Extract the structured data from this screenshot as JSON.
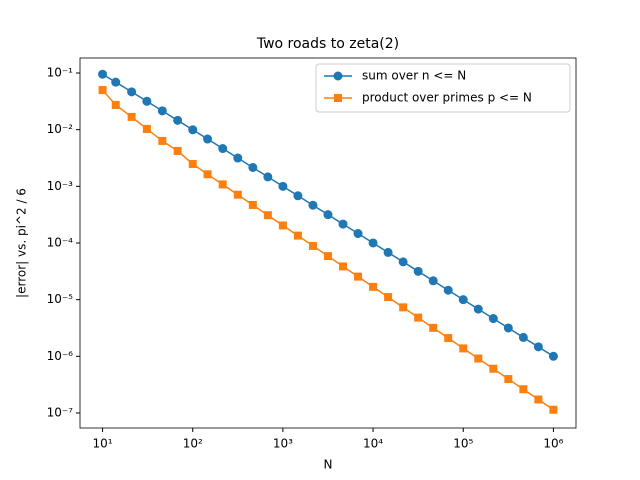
{
  "chart_data": {
    "type": "line",
    "title": "Two roads to zeta(2)",
    "xlabel": "N",
    "ylabel": "|error| vs. pi^2 / 6",
    "xscale": "log",
    "yscale": "log",
    "legend": "upper right",
    "x": [
      10,
      14,
      21,
      31,
      46,
      68,
      100,
      146,
      215,
      316,
      464,
      681,
      1000,
      1467,
      2154,
      3162,
      4641,
      6812,
      10000,
      14677,
      21544,
      31622,
      46415,
      68129,
      100000,
      146779,
      215443,
      316227,
      464158,
      681292,
      1000000
    ],
    "series": [
      {
        "name": "sum over n <= N",
        "color": "#1f77b4",
        "marker": "circle",
        "values": [
          0.0952,
          0.0689,
          0.0465,
          0.0317,
          0.0215,
          0.0146,
          0.00995,
          0.00683,
          0.00465,
          0.00316,
          0.00215,
          0.001468,
          0.0009995,
          0.0006815,
          0.0004643,
          0.0003162,
          0.0002155,
          0.0001468,
          0.0001,
          6.813e-05,
          4.642e-05,
          3.162e-05,
          2.154e-05,
          1.468e-05,
          1e-05,
          6.813e-06,
          4.642e-06,
          3.162e-06,
          2.154e-06,
          1.468e-06,
          1e-06
        ]
      },
      {
        "name": "product over primes p <= N",
        "color": "#ff7f0e",
        "marker": "square",
        "values": [
          0.05,
          0.0273,
          0.0168,
          0.0103,
          0.00633,
          0.00421,
          0.00248,
          0.00163,
          0.00108,
          0.000711,
          0.000469,
          0.000309,
          0.000204,
          0.000135,
          8.87e-05,
          5.86e-05,
          3.86e-05,
          2.55e-05,
          1.68e-05,
          1.11e-05,
          7.31e-06,
          4.82e-06,
          3.18e-06,
          2.1e-06,
          1.38e-06,
          9.14e-07,
          6.03e-07,
          3.97e-07,
          2.62e-07,
          1.73e-07,
          1.14e-07
        ]
      }
    ],
    "xlim": [
      5.62,
      1780000
    ],
    "ylim": [
      5.43e-08,
      0.184
    ],
    "xticks": [
      {
        "value": 10,
        "label": "10¹"
      },
      {
        "value": 100,
        "label": "10²"
      },
      {
        "value": 1000,
        "label": "10³"
      },
      {
        "value": 10000,
        "label": "10⁴"
      },
      {
        "value": 100000,
        "label": "10⁵"
      },
      {
        "value": 1000000,
        "label": "10⁶"
      }
    ],
    "yticks": [
      {
        "value": 1e-07,
        "label": "10⁻⁷"
      },
      {
        "value": 1e-06,
        "label": "10⁻⁶"
      },
      {
        "value": 1e-05,
        "label": "10⁻⁵"
      },
      {
        "value": 0.0001,
        "label": "10⁻⁴"
      },
      {
        "value": 0.001,
        "label": "10⁻³"
      },
      {
        "value": 0.01,
        "label": "10⁻²"
      },
      {
        "value": 0.1,
        "label": "10⁻¹"
      }
    ]
  }
}
